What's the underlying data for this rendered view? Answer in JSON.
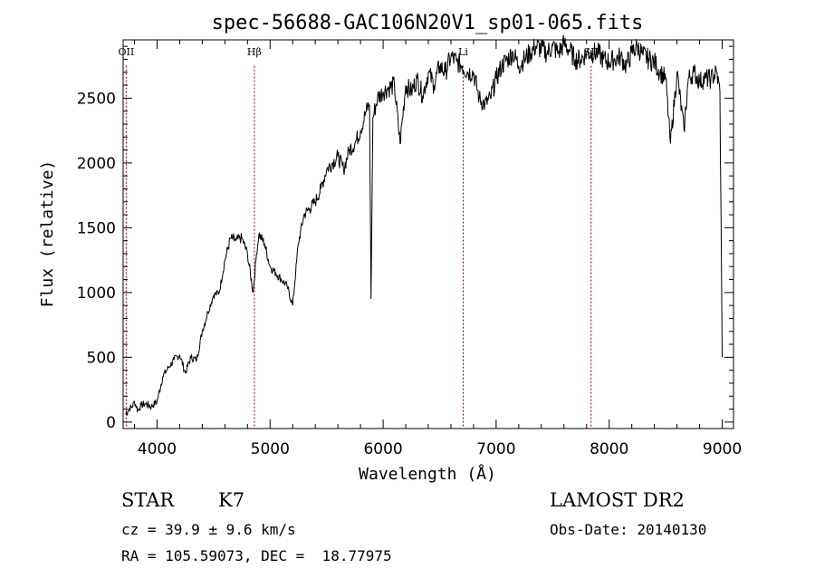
{
  "chart_data": {
    "type": "line",
    "title": "spec-56688-GAC106N20V1_sp01-065.fits",
    "xlabel": "Wavelength (Å)",
    "ylabel": "Flux (relative)",
    "xlim": [
      3700,
      9100
    ],
    "ylim": [
      -50,
      2950
    ],
    "xticks": [
      4000,
      5000,
      6000,
      7000,
      8000,
      9000
    ],
    "yticks": [
      0,
      500,
      1000,
      1500,
      2000,
      2500
    ],
    "grid": false,
    "line_color": "#000000",
    "marker_color": "#8b0000",
    "lines": [
      {
        "label": "OII",
        "x": 3727
      },
      {
        "label": "Hβ",
        "x": 4861
      },
      {
        "label": "Li",
        "x": 6708
      },
      {
        "label": "SII",
        "x": 7840
      }
    ],
    "series": [
      {
        "x": [
          3720,
          3750,
          3780,
          3800,
          3830,
          3860,
          3900,
          3950,
          4000,
          4050,
          4100,
          4150,
          4200,
          4250,
          4300,
          4350,
          4400,
          4450,
          4500,
          4550,
          4600,
          4650,
          4700,
          4750,
          4800,
          4850,
          4880,
          4900,
          4950,
          5000,
          5050,
          5100,
          5150,
          5200,
          5250,
          5300,
          5350,
          5400,
          5450,
          5500,
          5550,
          5600,
          5650,
          5700,
          5750,
          5800,
          5850,
          5880,
          5893,
          5910,
          5950,
          6000,
          6050,
          6100,
          6150,
          6200,
          6250,
          6300,
          6350,
          6400,
          6450,
          6500,
          6550,
          6600,
          6650,
          6700,
          6750,
          6800,
          6850,
          6900,
          6950,
          7000,
          7050,
          7100,
          7150,
          7200,
          7250,
          7300,
          7350,
          7400,
          7450,
          7500,
          7550,
          7600,
          7650,
          7700,
          7750,
          7800,
          7850,
          7900,
          7950,
          8000,
          8050,
          8100,
          8150,
          8200,
          8250,
          8300,
          8350,
          8400,
          8450,
          8500,
          8542,
          8600,
          8662,
          8700,
          8750,
          8800,
          8850,
          8900,
          8950,
          8980,
          9000
        ],
        "y": [
          60,
          100,
          120,
          160,
          90,
          130,
          140,
          120,
          160,
          350,
          420,
          480,
          520,
          380,
          500,
          480,
          700,
          850,
          980,
          1000,
          1250,
          1420,
          1400,
          1420,
          1300,
          1000,
          1300,
          1450,
          1380,
          1200,
          1150,
          1100,
          1050,
          900,
          1380,
          1600,
          1650,
          1700,
          1800,
          1950,
          2000,
          2050,
          1950,
          2100,
          2150,
          2250,
          2400,
          2450,
          950,
          2350,
          2500,
          2550,
          2580,
          2600,
          2150,
          2600,
          2550,
          2650,
          2520,
          2700,
          2600,
          2750,
          2700,
          2820,
          2780,
          2750,
          2700,
          2700,
          2500,
          2450,
          2500,
          2650,
          2750,
          2800,
          2850,
          2750,
          2800,
          2850,
          2900,
          2880,
          2850,
          2900,
          2850,
          2920,
          2870,
          2800,
          2800,
          2850,
          2850,
          2850,
          2800,
          2780,
          2800,
          2820,
          2750,
          2850,
          2900,
          2830,
          2800,
          2780,
          2700,
          2650,
          2150,
          2700,
          2250,
          2650,
          2700,
          2630,
          2650,
          2650,
          2700,
          2550,
          500
        ]
      }
    ]
  },
  "info": {
    "object_class": "STAR",
    "subclass": "K7",
    "survey": "LAMOST DR2",
    "cz": "cz = 39.9 ± 9.6 km/s",
    "obs_date": "Obs-Date: 20140130",
    "coords": "RA = 105.59073, DEC =  18.77975"
  }
}
